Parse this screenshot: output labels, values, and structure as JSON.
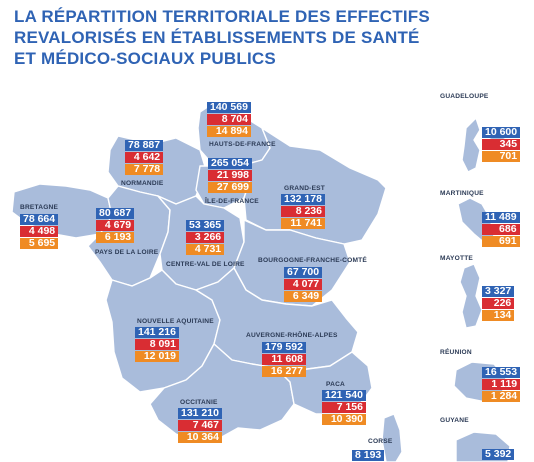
{
  "title_lines": [
    "LA RÉPARTITION TERRITORIALE DES EFFECTIFS",
    "REVALORISÉS EN ÉTABLISSEMENTS DE SANTÉ",
    "ET MÉDICO-SOCIAUX PUBLICS"
  ],
  "colors": {
    "blue": "#2f63b4",
    "red": "#d92d33",
    "orange": "#ef8b24",
    "land": "#a9bcdb"
  },
  "regions": {
    "hauts_de_france": {
      "label": "HAUTS-DE-FRANCE",
      "values": [
        "140 569",
        "8 704",
        "14 894"
      ]
    },
    "normandie": {
      "label": "NORMANDIE",
      "values": [
        "78 887",
        "4 642",
        "7 778"
      ]
    },
    "ile_de_france": {
      "label": "ÎLE-DE-FRANCE",
      "values": [
        "265 054",
        "21 998",
        "27 699"
      ]
    },
    "grand_est": {
      "label": "GRAND-EST",
      "values": [
        "132 178",
        "8 236",
        "11 741"
      ]
    },
    "bretagne": {
      "label": "BRETAGNE",
      "values": [
        "78 664",
        "4 498",
        "5 695"
      ]
    },
    "pays_de_la_loire": {
      "label": "PAYS DE LA LOIRE",
      "values": [
        "80 687",
        "4 679",
        "6 193"
      ]
    },
    "centre_val_de_loire": {
      "label": "CENTRE-VAL DE LOIRE",
      "values": [
        "53 365",
        "3 266",
        "4 731"
      ]
    },
    "bourgogne_franche_comte": {
      "label": "BOURGOGNE-FRANCHE-COMTÉ",
      "values": [
        "67 700",
        "4 077",
        "6 349"
      ]
    },
    "nouvelle_aquitaine": {
      "label": "NOUVELLE AQUITAINE",
      "values": [
        "141 216",
        "8 091",
        "12 019"
      ]
    },
    "auvergne_rhone_alpes": {
      "label": "AUVERGNE-RHÔNE-ALPES",
      "values": [
        "179 592",
        "11 608",
        "16 277"
      ]
    },
    "occitanie": {
      "label": "OCCITANIE",
      "values": [
        "131 210",
        "7 467",
        "10 364"
      ]
    },
    "paca": {
      "label": "PACA",
      "values": [
        "121 540",
        "7 156",
        "10 390"
      ]
    },
    "corse": {
      "label": "CORSE",
      "values": [
        "8 193"
      ]
    },
    "guadeloupe": {
      "label": "GUADELOUPE",
      "values": [
        "10 600",
        "345",
        "701"
      ]
    },
    "martinique": {
      "label": "MARTINIQUE",
      "values": [
        "11 489",
        "686",
        "691"
      ]
    },
    "mayotte": {
      "label": "MAYOTTE",
      "values": [
        "3 327",
        "226",
        "134"
      ]
    },
    "reunion": {
      "label": "RÉUNION",
      "values": [
        "16 553",
        "1 119",
        "1 284"
      ]
    },
    "guyane": {
      "label": "GUYANE",
      "values": [
        "5 392"
      ]
    }
  }
}
